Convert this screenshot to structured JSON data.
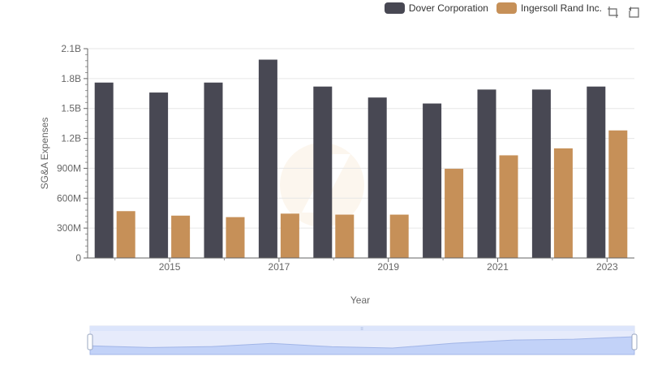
{
  "legend": {
    "items": [
      {
        "label": "Dover Corporation",
        "color": "#484853"
      },
      {
        "label": "Ingersoll Rand Inc.",
        "color": "#c69058"
      }
    ]
  },
  "toolbox": {
    "icons": [
      "zoom-icon",
      "restore-icon"
    ]
  },
  "chart_data": {
    "type": "bar",
    "x": [
      2014,
      2015,
      2016,
      2017,
      2018,
      2019,
      2020,
      2021,
      2022,
      2023
    ],
    "x_tick_labels": [
      "2015",
      "2017",
      "2019",
      "2021",
      "2023"
    ],
    "series": [
      {
        "name": "Dover Corporation",
        "color": "#484853",
        "values": [
          1760000000,
          1660000000,
          1760000000,
          1990000000,
          1720000000,
          1610000000,
          1550000000,
          1690000000,
          1690000000,
          1720000000
        ]
      },
      {
        "name": "Ingersoll Rand Inc.",
        "color": "#c69058",
        "values": [
          470000000,
          425000000,
          410000000,
          445000000,
          435000000,
          435000000,
          895000000,
          1030000000,
          1100000000,
          1280000000
        ]
      }
    ],
    "xlabel": "Year",
    "ylabel": "SG&A Expenses",
    "ylim": [
      0,
      2100000000
    ],
    "y_ticks": [
      {
        "value": 0,
        "label": "0"
      },
      {
        "value": 300000000,
        "label": "300M"
      },
      {
        "value": 600000000,
        "label": "600M"
      },
      {
        "value": 900000000,
        "label": "900M"
      },
      {
        "value": 1200000000,
        "label": "1.2B"
      },
      {
        "value": 1500000000,
        "label": "1.5B"
      },
      {
        "value": 1800000000,
        "label": "1.8B"
      },
      {
        "value": 2100000000,
        "label": "2.1B"
      }
    ],
    "grid": true,
    "legend_position": "top-right",
    "data_zoom": {
      "start": 0,
      "end": 100
    }
  }
}
